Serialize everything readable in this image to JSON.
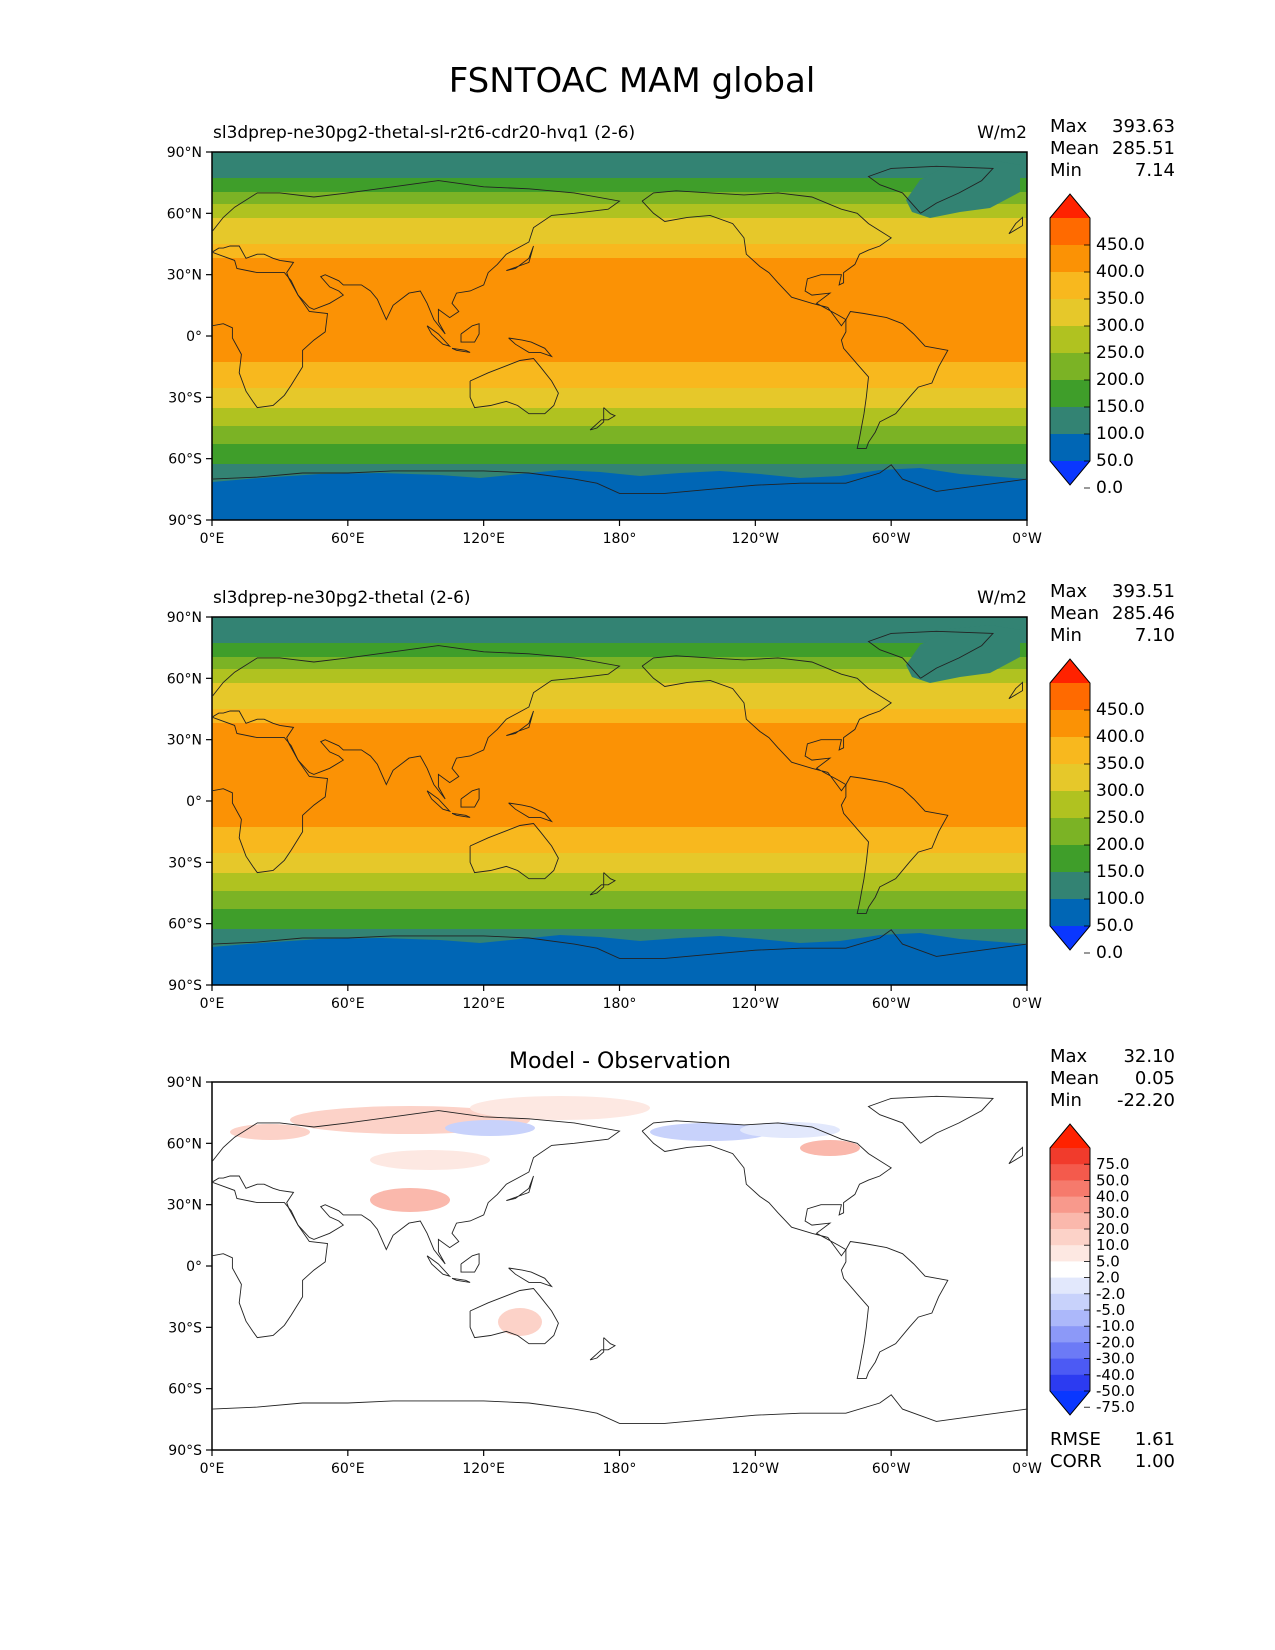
{
  "figure_title": "FSNTOAC MAM global",
  "panels": [
    {
      "title_left": "sl3dprep-ne30pg2-thetal-sl-r2t6-cdr20-hvq1 (2-6)",
      "title_center": "",
      "units": "W/m2",
      "stats": [
        {
          "label": "Max",
          "value": "393.63"
        },
        {
          "label": "Mean",
          "value": "285.51"
        },
        {
          "label": "Min",
          "value": "7.14"
        }
      ],
      "colorbar": {
        "levels": [
          "450.0",
          "400.0",
          "350.0",
          "300.0",
          "250.0",
          "200.0",
          "150.0",
          "100.0",
          "50.0",
          "0.0"
        ],
        "colors": [
          "#ff2200",
          "#ff6a00",
          "#fb9205",
          "#f8b81e",
          "#e6c82a",
          "#b0c220",
          "#7bb325",
          "#3f9e2a",
          "#338373",
          "#0066b5",
          "#0a37ff"
        ]
      },
      "footer_stats": []
    },
    {
      "title_left": "sl3dprep-ne30pg2-thetal (2-6)",
      "title_center": "",
      "units": "W/m2",
      "stats": [
        {
          "label": "Max",
          "value": "393.51"
        },
        {
          "label": "Mean",
          "value": "285.46"
        },
        {
          "label": "Min",
          "value": "7.10"
        }
      ],
      "colorbar": {
        "levels": [
          "450.0",
          "400.0",
          "350.0",
          "300.0",
          "250.0",
          "200.0",
          "150.0",
          "100.0",
          "50.0",
          "0.0"
        ],
        "colors": [
          "#ff2200",
          "#ff6a00",
          "#fb9205",
          "#f8b81e",
          "#e6c82a",
          "#b0c220",
          "#7bb325",
          "#3f9e2a",
          "#338373",
          "#0066b5",
          "#0a37ff"
        ]
      },
      "footer_stats": []
    },
    {
      "title_left": "",
      "title_center": "Model - Observation",
      "units": "",
      "stats": [
        {
          "label": "Max",
          "value": "32.10"
        },
        {
          "label": "Mean",
          "value": "0.05"
        },
        {
          "label": "Min",
          "value": "-22.20"
        }
      ],
      "colorbar": {
        "levels": [
          "75.0",
          "50.0",
          "40.0",
          "30.0",
          "20.0",
          "10.0",
          "5.0",
          "2.0",
          "-2.0",
          "-5.0",
          "-10.0",
          "-20.0",
          "-30.0",
          "-40.0",
          "-50.0",
          "-75.0"
        ],
        "colors": [
          "#ff2200",
          "#f13b2c",
          "#f45a4c",
          "#f67a6c",
          "#f8998c",
          "#fab8ac",
          "#fcd2c8",
          "#fde8e2",
          "#ffffff",
          "#e2e8fc",
          "#c8d2fb",
          "#acb8fa",
          "#8c99f8",
          "#6c7af6",
          "#4c5af4",
          "#2c3bf1",
          "#0a37ff"
        ]
      },
      "footer_stats": [
        {
          "label": "RMSE",
          "value": "1.61"
        },
        {
          "label": "CORR",
          "value": "1.00"
        }
      ]
    }
  ],
  "map_axes": {
    "lat_ticks": [
      "90°N",
      "60°N",
      "30°N",
      "0°",
      "30°S",
      "60°S",
      "90°S"
    ],
    "lon_ticks": [
      "0°E",
      "60°E",
      "120°E",
      "180°",
      "120°W",
      "60°W",
      "0°W"
    ]
  }
}
